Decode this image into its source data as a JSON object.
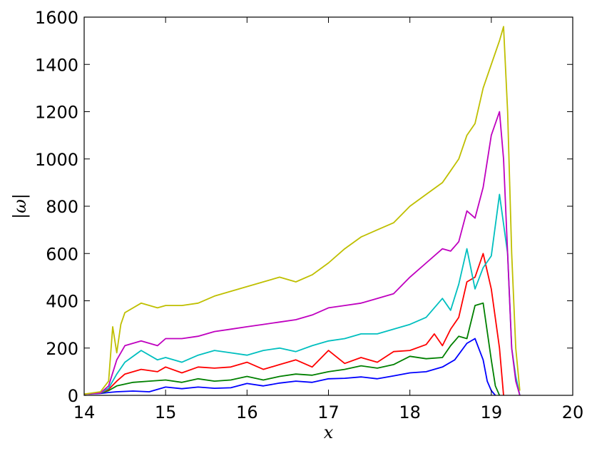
{
  "chart_data": {
    "type": "line",
    "title": "",
    "xlabel": "x",
    "ylabel": "|ω|",
    "xlim": [
      14,
      20
    ],
    "ylim": [
      0,
      1600
    ],
    "xticks": [
      14,
      15,
      16,
      17,
      18,
      19,
      20
    ],
    "yticks": [
      0,
      200,
      400,
      600,
      800,
      1000,
      1200,
      1400,
      1600
    ],
    "grid": false,
    "legend": "none",
    "series": [
      {
        "color": "#0000ff",
        "x": [
          14.0,
          14.2,
          14.3,
          14.4,
          14.6,
          14.8,
          15.0,
          15.2,
          15.4,
          15.6,
          15.8,
          16.0,
          16.2,
          16.4,
          16.6,
          16.8,
          17.0,
          17.2,
          17.4,
          17.6,
          17.8,
          18.0,
          18.2,
          18.4,
          18.55,
          18.7,
          18.8,
          18.9,
          18.95,
          19.0,
          19.05
        ],
        "y": [
          5,
          8,
          12,
          15,
          18,
          15,
          35,
          28,
          35,
          30,
          32,
          50,
          40,
          52,
          60,
          55,
          70,
          72,
          78,
          70,
          82,
          95,
          100,
          120,
          150,
          220,
          240,
          150,
          60,
          20,
          0
        ]
      },
      {
        "color": "#008000",
        "x": [
          14.0,
          14.2,
          14.3,
          14.4,
          14.6,
          14.8,
          15.0,
          15.2,
          15.4,
          15.6,
          15.8,
          16.0,
          16.2,
          16.4,
          16.6,
          16.8,
          17.0,
          17.2,
          17.4,
          17.6,
          17.8,
          18.0,
          18.2,
          18.4,
          18.5,
          18.6,
          18.7,
          18.8,
          18.9,
          19.0,
          19.05,
          19.1
        ],
        "y": [
          5,
          10,
          20,
          40,
          55,
          60,
          65,
          55,
          70,
          60,
          65,
          80,
          65,
          80,
          90,
          85,
          100,
          110,
          125,
          115,
          130,
          165,
          155,
          160,
          210,
          250,
          240,
          380,
          390,
          150,
          40,
          0
        ]
      },
      {
        "color": "#ff0000",
        "x": [
          14.0,
          14.2,
          14.3,
          14.4,
          14.5,
          14.7,
          14.9,
          15.0,
          15.2,
          15.4,
          15.6,
          15.8,
          16.0,
          16.2,
          16.4,
          16.6,
          16.8,
          17.0,
          17.2,
          17.4,
          17.6,
          17.8,
          18.0,
          18.2,
          18.3,
          18.4,
          18.5,
          18.6,
          18.7,
          18.8,
          18.9,
          19.0,
          19.1,
          19.15
        ],
        "y": [
          5,
          10,
          25,
          60,
          90,
          110,
          100,
          120,
          95,
          120,
          115,
          120,
          140,
          110,
          130,
          150,
          120,
          190,
          135,
          160,
          140,
          185,
          190,
          215,
          260,
          210,
          280,
          330,
          480,
          500,
          600,
          450,
          200,
          0
        ]
      },
      {
        "color": "#00bfbf",
        "x": [
          14.0,
          14.2,
          14.3,
          14.4,
          14.5,
          14.7,
          14.9,
          15.0,
          15.2,
          15.4,
          15.6,
          15.8,
          16.0,
          16.2,
          16.4,
          16.6,
          16.8,
          17.0,
          17.2,
          17.4,
          17.6,
          17.8,
          18.0,
          18.2,
          18.4,
          18.5,
          18.6,
          18.7,
          18.8,
          18.9,
          19.0,
          19.1,
          19.2,
          19.25,
          19.3,
          19.35
        ],
        "y": [
          5,
          10,
          30,
          90,
          140,
          190,
          150,
          160,
          140,
          170,
          190,
          180,
          170,
          190,
          200,
          185,
          210,
          230,
          240,
          260,
          260,
          280,
          300,
          330,
          410,
          360,
          470,
          620,
          450,
          540,
          590,
          850,
          600,
          200,
          80,
          0
        ]
      },
      {
        "color": "#bf00bf",
        "x": [
          14.0,
          14.2,
          14.3,
          14.4,
          14.5,
          14.7,
          14.9,
          15.0,
          15.2,
          15.4,
          15.6,
          15.8,
          16.0,
          16.2,
          16.4,
          16.6,
          16.8,
          17.0,
          17.2,
          17.4,
          17.6,
          17.8,
          18.0,
          18.2,
          18.4,
          18.5,
          18.6,
          18.7,
          18.8,
          18.9,
          19.0,
          19.1,
          19.15,
          19.2,
          19.25,
          19.3,
          19.35
        ],
        "y": [
          5,
          10,
          40,
          150,
          210,
          230,
          210,
          240,
          240,
          250,
          270,
          280,
          290,
          300,
          310,
          320,
          340,
          370,
          380,
          390,
          410,
          430,
          500,
          560,
          620,
          610,
          650,
          780,
          750,
          880,
          1100,
          1200,
          1000,
          600,
          200,
          60,
          0
        ]
      },
      {
        "color": "#bfbf00",
        "x": [
          14.0,
          14.2,
          14.3,
          14.35,
          14.4,
          14.45,
          14.5,
          14.7,
          14.9,
          15.0,
          15.2,
          15.4,
          15.6,
          15.8,
          16.0,
          16.2,
          16.4,
          16.6,
          16.8,
          17.0,
          17.2,
          17.4,
          17.6,
          17.8,
          18.0,
          18.2,
          18.4,
          18.5,
          18.6,
          18.7,
          18.8,
          18.9,
          19.0,
          19.1,
          19.15,
          19.2,
          19.25,
          19.3,
          19.35
        ],
        "y": [
          5,
          15,
          60,
          290,
          180,
          300,
          350,
          390,
          370,
          380,
          380,
          390,
          420,
          440,
          460,
          480,
          500,
          480,
          510,
          560,
          620,
          670,
          700,
          730,
          800,
          850,
          900,
          950,
          1000,
          1100,
          1150,
          1300,
          1400,
          1500,
          1560,
          1200,
          600,
          200,
          20
        ]
      }
    ]
  }
}
